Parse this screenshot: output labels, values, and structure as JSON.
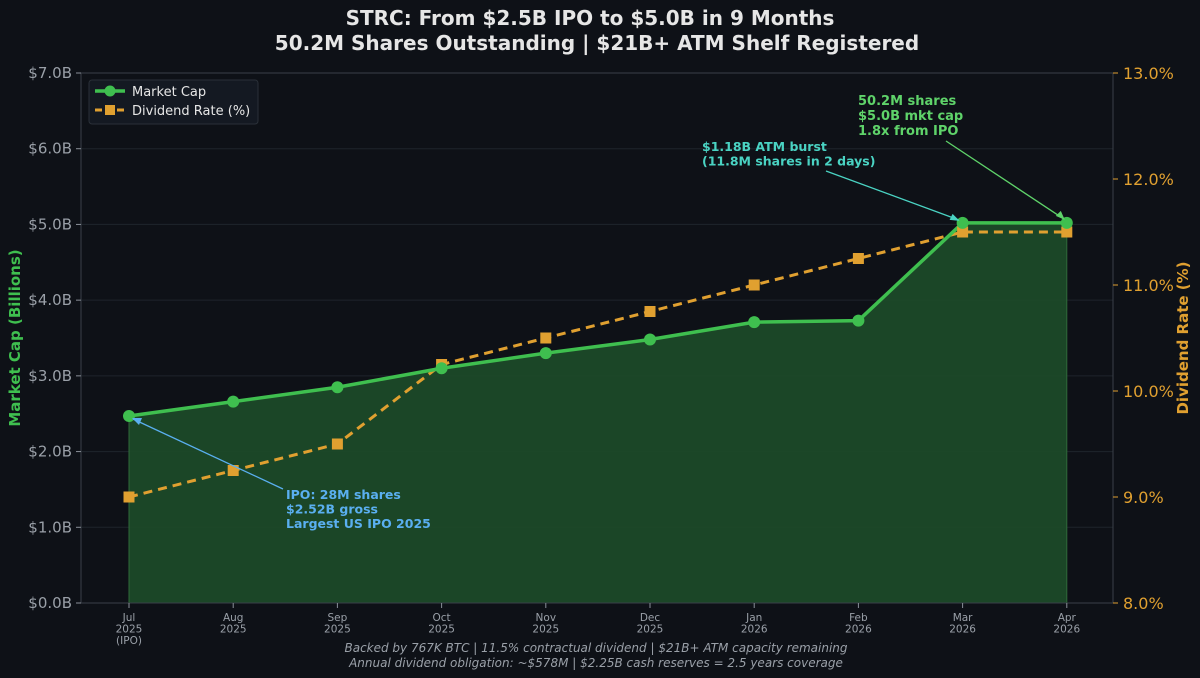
{
  "chart_data": {
    "type": "line",
    "title": "STRC: From $2.5B IPO to $5.0B in 9 Months",
    "subtitle": "50.2M Shares Outstanding | $21B+ ATM Shelf Registered",
    "ylabel_left": "Market Cap (Billions)",
    "ylabel_right": "Dividend Rate (%)",
    "ylim_left": [
      0,
      7
    ],
    "ylim_right": [
      8,
      13
    ],
    "left_ticks": [
      "$0.0B",
      "$1.0B",
      "$2.0B",
      "$3.0B",
      "$4.0B",
      "$5.0B",
      "$6.0B",
      "$7.0B"
    ],
    "right_ticks": [
      "8.0%",
      "9.0%",
      "10.0%",
      "11.0%",
      "12.0%",
      "13.0%"
    ],
    "categories": [
      [
        "Jul",
        "2025",
        "(IPO)"
      ],
      [
        "Aug",
        "2025"
      ],
      [
        "Sep",
        "2025"
      ],
      [
        "Oct",
        "2025"
      ],
      [
        "Nov",
        "2025"
      ],
      [
        "Dec",
        "2025"
      ],
      [
        "Jan",
        "2026"
      ],
      [
        "Feb",
        "2026"
      ],
      [
        "Mar",
        "2026"
      ],
      [
        "Apr",
        "2026"
      ]
    ],
    "series": [
      {
        "name": "Market Cap",
        "axis": "left",
        "color": "#3fbf4f",
        "values": [
          2.47,
          2.66,
          2.85,
          3.1,
          3.3,
          3.48,
          3.71,
          3.73,
          5.02,
          5.02
        ]
      },
      {
        "name": "Dividend Rate (%)",
        "axis": "right",
        "color": "#e0a030",
        "values": [
          9.0,
          9.25,
          9.5,
          10.25,
          10.5,
          10.75,
          11.0,
          11.25,
          11.5,
          11.5
        ]
      }
    ],
    "annotations": [
      {
        "lines": [
          "IPO: 28M shares",
          "$2.52B gross",
          "Largest US IPO 2025"
        ],
        "color": "#5aaff0",
        "point_index": 0
      },
      {
        "lines": [
          "$1.18B ATM burst",
          "(11.8M shares in 2 days)"
        ],
        "color": "#4ad3c3",
        "point_index": 8
      },
      {
        "lines": [
          "50.2M shares",
          "$5.0B mkt cap",
          "1.8x from IPO"
        ],
        "color": "#5fd36a",
        "point_index": 9
      }
    ],
    "footer": [
      "Backed by 767K BTC | 11.5% contractual dividend | $21B+ ATM capacity remaining",
      "Annual dividend obligation: ~$578M | $2.25B cash reserves = 2.5 years coverage"
    ],
    "legend_position": "top-left",
    "grid": true
  }
}
